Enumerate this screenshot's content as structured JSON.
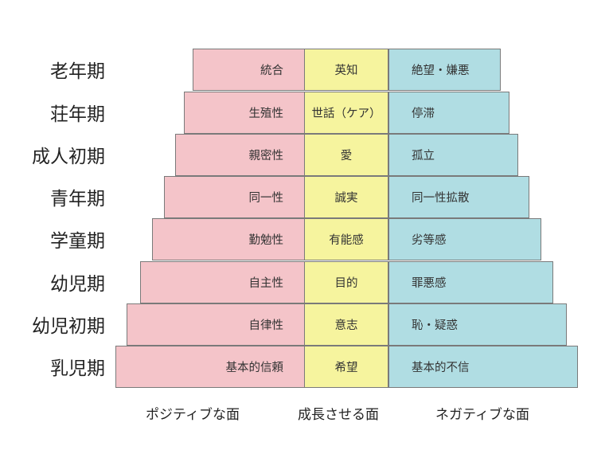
{
  "rows": [
    {
      "stage": "老年期",
      "positive": "統合",
      "virtue": "英知",
      "negative": "絶望・嫌悪"
    },
    {
      "stage": "荘年期",
      "positive": "生殖性",
      "virtue": "世話（ケア）",
      "negative": "停滞"
    },
    {
      "stage": "成人初期",
      "positive": "親密性",
      "virtue": "愛",
      "negative": "孤立"
    },
    {
      "stage": "青年期",
      "positive": "同一性",
      "virtue": "誠実",
      "negative": "同一性拡散"
    },
    {
      "stage": "学童期",
      "positive": "勤勉性",
      "virtue": "有能感",
      "negative": "劣等感"
    },
    {
      "stage": "幼児期",
      "positive": "自主性",
      "virtue": "目的",
      "negative": "罪悪感"
    },
    {
      "stage": "幼児初期",
      "positive": "自律性",
      "virtue": "意志",
      "negative": "恥・疑惑"
    },
    {
      "stage": "乳児期",
      "positive": "基本的信頼",
      "virtue": "希望",
      "negative": "基本的不信"
    }
  ],
  "columns": {
    "positive": "ポジティブな面",
    "middle": "成長させる面",
    "negative": "ネガティブな面"
  },
  "colors": {
    "positive": "#f4c4c9",
    "middle": "#f6f49e",
    "negative": "#b0dde3",
    "border": "#7a7a7a"
  }
}
